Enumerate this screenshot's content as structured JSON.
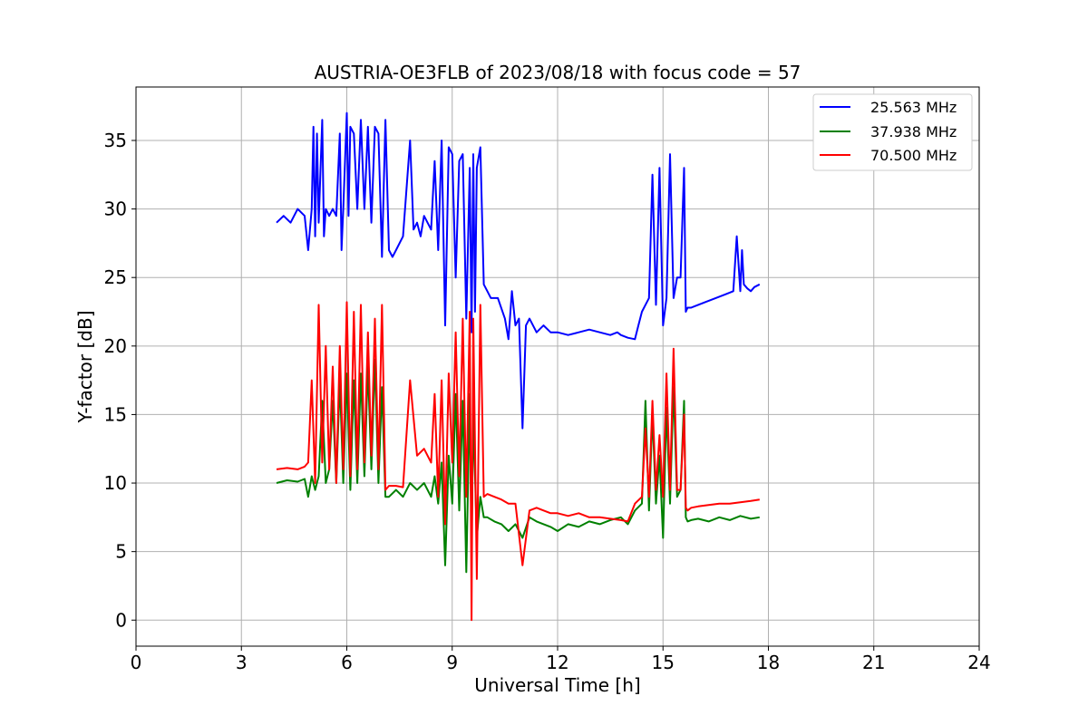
{
  "chart_data": {
    "type": "line",
    "title": "AUSTRIA-OE3FLB of 2023/08/18 with focus code = 57",
    "xlabel": "Universal Time [h]",
    "ylabel": "Y-factor [dB]",
    "xlim": [
      0,
      24
    ],
    "ylim": [
      -1.9,
      38.9
    ],
    "xticks": [
      0,
      3,
      6,
      9,
      12,
      15,
      18,
      21,
      24
    ],
    "yticks": [
      0,
      5,
      10,
      15,
      20,
      25,
      30,
      35
    ],
    "grid": true,
    "legend_position": "top-right",
    "series": [
      {
        "name": "25.563 MHz",
        "color": "#0000ff",
        "x": [
          4.0,
          4.2,
          4.4,
          4.6,
          4.8,
          4.9,
          5.0,
          5.05,
          5.1,
          5.15,
          5.2,
          5.3,
          5.35,
          5.4,
          5.5,
          5.6,
          5.7,
          5.8,
          5.85,
          5.9,
          6.0,
          6.05,
          6.1,
          6.2,
          6.3,
          6.4,
          6.5,
          6.6,
          6.7,
          6.8,
          6.9,
          7.0,
          7.1,
          7.2,
          7.3,
          7.4,
          7.6,
          7.8,
          7.9,
          8.0,
          8.1,
          8.2,
          8.4,
          8.5,
          8.6,
          8.7,
          8.8,
          8.9,
          9.0,
          9.1,
          9.2,
          9.3,
          9.4,
          9.5,
          9.55,
          9.6,
          9.65,
          9.7,
          9.8,
          9.9,
          10.0,
          10.1,
          10.3,
          10.5,
          10.6,
          10.7,
          10.8,
          10.9,
          11.0,
          11.1,
          11.2,
          11.4,
          11.6,
          11.8,
          12.0,
          12.3,
          12.6,
          12.9,
          13.2,
          13.5,
          13.7,
          13.8,
          14.0,
          14.2,
          14.3,
          14.4,
          14.5,
          14.6,
          14.7,
          14.8,
          14.9,
          15.0,
          15.1,
          15.2,
          15.3,
          15.4,
          15.5,
          15.6,
          15.65,
          15.7,
          15.8,
          16.0,
          16.2,
          16.5,
          16.8,
          17.0,
          17.1,
          17.2,
          17.25,
          17.3,
          17.4,
          17.5,
          17.6,
          17.75
        ],
        "y": [
          29.0,
          29.5,
          29.0,
          30.0,
          29.5,
          27.0,
          30.0,
          36.0,
          28.0,
          35.5,
          29.0,
          36.5,
          28.0,
          30.0,
          29.5,
          30.0,
          29.5,
          35.5,
          27.0,
          30.0,
          37.0,
          29.5,
          36.0,
          35.5,
          30.0,
          36.5,
          30.0,
          36.0,
          29.0,
          36.0,
          35.5,
          26.5,
          36.5,
          27.0,
          26.5,
          27.0,
          28.0,
          35.0,
          28.5,
          29.0,
          28.0,
          29.5,
          28.5,
          33.5,
          27.0,
          35.0,
          21.5,
          34.5,
          34.0,
          25.0,
          33.5,
          34.0,
          22.0,
          33.0,
          21.0,
          34.0,
          22.5,
          33.0,
          34.5,
          24.5,
          24.0,
          23.5,
          23.5,
          22.0,
          20.5,
          24.0,
          21.5,
          22.0,
          14.0,
          21.5,
          22.0,
          21.0,
          21.5,
          21.0,
          21.0,
          20.8,
          21.0,
          21.2,
          21.0,
          20.8,
          21.0,
          20.8,
          20.6,
          20.5,
          21.5,
          22.5,
          23.0,
          23.5,
          32.5,
          23.0,
          33.0,
          21.5,
          23.5,
          34.0,
          23.5,
          25.0,
          25.0,
          33.0,
          22.5,
          22.8,
          22.8,
          23.0,
          23.2,
          23.5,
          23.8,
          24.0,
          28.0,
          24.0,
          27.0,
          24.5,
          24.2,
          24.0,
          24.3,
          24.5
        ]
      },
      {
        "name": "37.938 MHz",
        "color": "#008000",
        "x": [
          4.0,
          4.3,
          4.6,
          4.8,
          4.9,
          5.0,
          5.1,
          5.2,
          5.3,
          5.4,
          5.5,
          5.6,
          5.7,
          5.8,
          5.9,
          6.0,
          6.1,
          6.2,
          6.3,
          6.4,
          6.5,
          6.6,
          6.7,
          6.8,
          6.9,
          7.0,
          7.1,
          7.2,
          7.4,
          7.6,
          7.8,
          8.0,
          8.2,
          8.4,
          8.5,
          8.6,
          8.7,
          8.8,
          8.9,
          9.0,
          9.1,
          9.2,
          9.3,
          9.4,
          9.5,
          9.55,
          9.6,
          9.7,
          9.8,
          9.9,
          10.0,
          10.2,
          10.4,
          10.6,
          10.8,
          11.0,
          11.2,
          11.4,
          11.6,
          11.8,
          12.0,
          12.3,
          12.6,
          12.9,
          13.2,
          13.5,
          13.8,
          14.0,
          14.2,
          14.4,
          14.5,
          14.6,
          14.7,
          14.8,
          14.9,
          15.0,
          15.1,
          15.2,
          15.3,
          15.4,
          15.5,
          15.6,
          15.65,
          15.7,
          15.8,
          16.0,
          16.3,
          16.6,
          16.9,
          17.2,
          17.5,
          17.75
        ],
        "y": [
          10.0,
          10.2,
          10.1,
          10.3,
          9.0,
          10.5,
          9.5,
          10.5,
          16.0,
          10.0,
          11.0,
          16.0,
          10.0,
          17.5,
          10.0,
          18.0,
          9.5,
          17.5,
          10.0,
          18.0,
          10.5,
          18.5,
          11.0,
          19.0,
          10.0,
          17.0,
          9.0,
          9.0,
          9.5,
          9.0,
          10.0,
          9.5,
          10.0,
          9.0,
          10.5,
          8.5,
          11.5,
          4.0,
          12.0,
          8.5,
          16.5,
          8.0,
          16.0,
          3.5,
          16.5,
          5.0,
          15.0,
          6.0,
          9.0,
          7.5,
          7.5,
          7.2,
          7.0,
          6.5,
          7.0,
          6.0,
          7.5,
          7.2,
          7.0,
          6.8,
          6.5,
          7.0,
          6.8,
          7.2,
          7.0,
          7.3,
          7.5,
          7.0,
          8.0,
          8.5,
          16.0,
          8.0,
          15.0,
          8.5,
          12.0,
          6.0,
          15.5,
          8.5,
          17.0,
          9.0,
          9.5,
          16.0,
          7.5,
          7.2,
          7.3,
          7.4,
          7.2,
          7.5,
          7.3,
          7.6,
          7.4,
          7.5
        ]
      },
      {
        "name": "70.500 MHz",
        "color": "#ff0000",
        "x": [
          4.0,
          4.3,
          4.6,
          4.8,
          4.9,
          5.0,
          5.1,
          5.2,
          5.3,
          5.4,
          5.5,
          5.6,
          5.7,
          5.8,
          5.9,
          6.0,
          6.1,
          6.2,
          6.3,
          6.4,
          6.5,
          6.6,
          6.7,
          6.8,
          6.9,
          7.0,
          7.1,
          7.2,
          7.4,
          7.6,
          7.8,
          8.0,
          8.2,
          8.4,
          8.5,
          8.6,
          8.7,
          8.8,
          8.9,
          9.0,
          9.1,
          9.2,
          9.3,
          9.4,
          9.5,
          9.55,
          9.6,
          9.7,
          9.8,
          9.9,
          10.0,
          10.2,
          10.4,
          10.6,
          10.8,
          11.0,
          11.2,
          11.4,
          11.6,
          11.8,
          12.0,
          12.3,
          12.6,
          12.9,
          13.2,
          13.5,
          13.8,
          14.0,
          14.2,
          14.4,
          14.5,
          14.6,
          14.7,
          14.8,
          14.9,
          15.0,
          15.1,
          15.2,
          15.3,
          15.4,
          15.5,
          15.6,
          15.65,
          15.7,
          15.8,
          16.0,
          16.3,
          16.6,
          16.9,
          17.2,
          17.5,
          17.75
        ],
        "y": [
          11.0,
          11.1,
          11.0,
          11.2,
          11.5,
          17.5,
          10.0,
          23.0,
          11.5,
          20.0,
          11.0,
          18.5,
          10.0,
          20.0,
          11.0,
          23.2,
          10.5,
          22.5,
          11.0,
          23.0,
          11.5,
          21.0,
          12.0,
          22.0,
          11.0,
          23.0,
          9.5,
          9.8,
          9.8,
          9.7,
          17.5,
          12.0,
          12.5,
          11.5,
          16.5,
          9.0,
          17.5,
          7.0,
          18.0,
          11.5,
          21.0,
          10.5,
          22.0,
          9.0,
          22.5,
          0.0,
          22.0,
          3.0,
          23.0,
          9.0,
          9.2,
          9.0,
          8.8,
          8.5,
          8.5,
          4.0,
          8.0,
          8.2,
          8.0,
          7.8,
          7.8,
          7.6,
          7.8,
          7.5,
          7.5,
          7.4,
          7.3,
          7.2,
          8.5,
          9.0,
          14.0,
          9.0,
          16.0,
          9.5,
          13.5,
          9.0,
          18.0,
          9.5,
          19.8,
          9.5,
          9.5,
          15.0,
          8.2,
          8.0,
          8.2,
          8.3,
          8.4,
          8.5,
          8.5,
          8.6,
          8.7,
          8.8
        ]
      }
    ]
  }
}
